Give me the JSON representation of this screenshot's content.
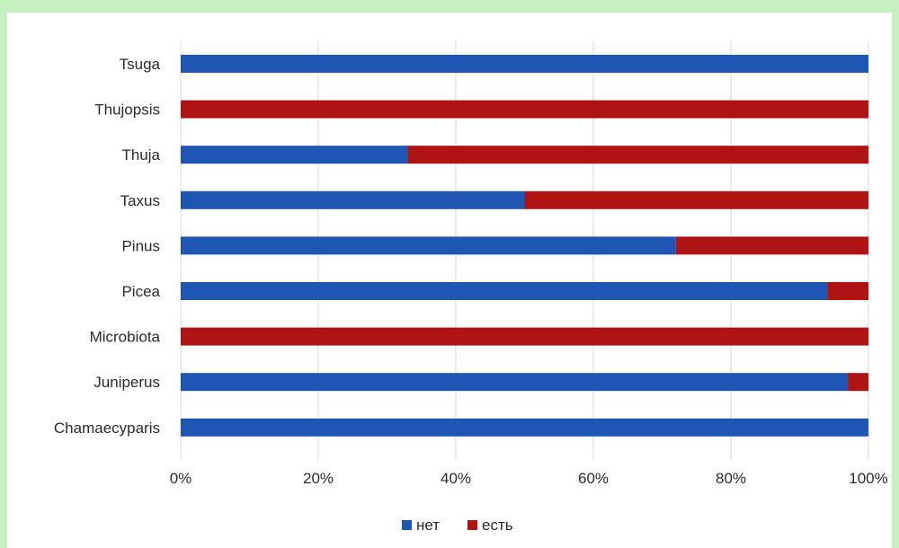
{
  "chart_data": {
    "type": "bar",
    "orientation": "horizontal",
    "stacked": "percent",
    "title": "",
    "xlabel": "",
    "ylabel": "",
    "categories": [
      "Tsuga",
      "Thujopsis",
      "Thuja",
      "Taxus",
      "Pinus",
      "Picea",
      "Microbiota",
      "Juniperus",
      "Chamaecyparis"
    ],
    "series": [
      {
        "name": "нет",
        "color": "#1f55b3",
        "values": [
          100,
          0,
          33,
          50,
          72,
          94,
          0,
          97,
          100
        ]
      },
      {
        "name": "есть",
        "color": "#b01313",
        "values": [
          0,
          100,
          67,
          50,
          28,
          6,
          100,
          3,
          0
        ]
      }
    ],
    "xlim": [
      0,
      100
    ],
    "xticks": [
      "0%",
      "20%",
      "40%",
      "60%",
      "80%",
      "100%"
    ],
    "grid": true,
    "legend_position": "bottom"
  }
}
